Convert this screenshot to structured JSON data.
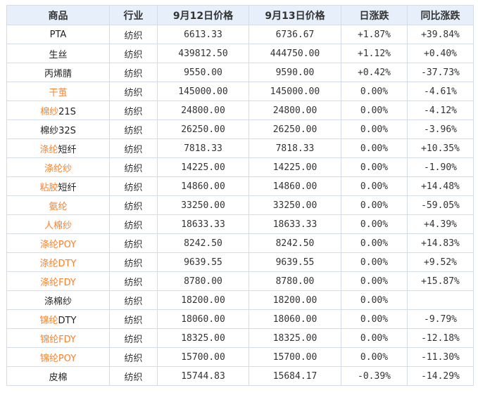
{
  "colors": {
    "header_bg": "#e6effa",
    "border": "#d3dce8",
    "orange_name": "#ff7f27",
    "up": "#ff1a1a",
    "down": "#1a9e2e",
    "text": "#333333"
  },
  "headers": [
    "商品",
    "行业",
    "9月12日价格",
    "9月13日价格",
    "日涨跌",
    "同比涨跌"
  ],
  "rows": [
    {
      "name_orange": "",
      "name_black": "PTA",
      "industry": "纺织",
      "p1": "6613.33",
      "p2": "6736.67",
      "day": "+1.87%",
      "day_dir": "up",
      "yoy": "+39.84%",
      "yoy_dir": "up"
    },
    {
      "name_orange": "",
      "name_black": "生丝",
      "industry": "纺织",
      "p1": "439812.50",
      "p2": "444750.00",
      "day": "+1.12%",
      "day_dir": "up",
      "yoy": "+0.40%",
      "yoy_dir": "up"
    },
    {
      "name_orange": "",
      "name_black": "丙烯腈",
      "industry": "纺织",
      "p1": "9550.00",
      "p2": "9590.00",
      "day": "+0.42%",
      "day_dir": "up",
      "yoy": "-37.73%",
      "yoy_dir": "down"
    },
    {
      "name_orange": "干茧",
      "name_black": "",
      "industry": "纺织",
      "p1": "145000.00",
      "p2": "145000.00",
      "day": "0.00%",
      "day_dir": "flat",
      "yoy": "-4.61%",
      "yoy_dir": "down"
    },
    {
      "name_orange": "棉纱",
      "name_black": "21S",
      "industry": "纺织",
      "p1": "24800.00",
      "p2": "24800.00",
      "day": "0.00%",
      "day_dir": "flat",
      "yoy": "-4.12%",
      "yoy_dir": "down"
    },
    {
      "name_orange": "",
      "name_black": "棉纱32S",
      "industry": "纺织",
      "p1": "26250.00",
      "p2": "26250.00",
      "day": "0.00%",
      "day_dir": "flat",
      "yoy": "-3.96%",
      "yoy_dir": "down"
    },
    {
      "name_orange": "涤纶",
      "name_black": "短纤",
      "industry": "纺织",
      "p1": "7818.33",
      "p2": "7818.33",
      "day": "0.00%",
      "day_dir": "flat",
      "yoy": "+10.35%",
      "yoy_dir": "up"
    },
    {
      "name_orange": "涤纶纱",
      "name_black": "",
      "industry": "纺织",
      "p1": "14225.00",
      "p2": "14225.00",
      "day": "0.00%",
      "day_dir": "flat",
      "yoy": "-1.90%",
      "yoy_dir": "down"
    },
    {
      "name_orange": "粘胶",
      "name_black": "短纤",
      "industry": "纺织",
      "p1": "14860.00",
      "p2": "14860.00",
      "day": "0.00%",
      "day_dir": "flat",
      "yoy": "+14.48%",
      "yoy_dir": "up"
    },
    {
      "name_orange": "氨纶",
      "name_black": "",
      "industry": "纺织",
      "p1": "33250.00",
      "p2": "33250.00",
      "day": "0.00%",
      "day_dir": "flat",
      "yoy": "-59.05%",
      "yoy_dir": "down"
    },
    {
      "name_orange": "人棉纱",
      "name_black": "",
      "industry": "纺织",
      "p1": "18633.33",
      "p2": "18633.33",
      "day": "0.00%",
      "day_dir": "flat",
      "yoy": "+4.39%",
      "yoy_dir": "up"
    },
    {
      "name_orange": "涤纶POY",
      "name_black": "",
      "industry": "纺织",
      "p1": "8242.50",
      "p2": "8242.50",
      "day": "0.00%",
      "day_dir": "flat",
      "yoy": "+14.83%",
      "yoy_dir": "up"
    },
    {
      "name_orange": "涤纶DTY",
      "name_black": "",
      "industry": "纺织",
      "p1": "9639.55",
      "p2": "9639.55",
      "day": "0.00%",
      "day_dir": "flat",
      "yoy": "+9.52%",
      "yoy_dir": "up"
    },
    {
      "name_orange": "涤纶FDY",
      "name_black": "",
      "industry": "纺织",
      "p1": "8780.00",
      "p2": "8780.00",
      "day": "0.00%",
      "day_dir": "flat",
      "yoy": "+15.87%",
      "yoy_dir": "up"
    },
    {
      "name_orange": "",
      "name_black": "涤棉纱",
      "industry": "纺织",
      "p1": "18200.00",
      "p2": "18200.00",
      "day": "0.00%",
      "day_dir": "flat",
      "yoy": "",
      "yoy_dir": "flat"
    },
    {
      "name_orange": "锦纶",
      "name_black": "DTY",
      "industry": "纺织",
      "p1": "18060.00",
      "p2": "18060.00",
      "day": "0.00%",
      "day_dir": "flat",
      "yoy": "-9.79%",
      "yoy_dir": "down"
    },
    {
      "name_orange": "锦纶FDY",
      "name_black": "",
      "industry": "纺织",
      "p1": "18325.00",
      "p2": "18325.00",
      "day": "0.00%",
      "day_dir": "flat",
      "yoy": "-12.18%",
      "yoy_dir": "down"
    },
    {
      "name_orange": "锦纶POY",
      "name_black": "",
      "industry": "纺织",
      "p1": "15700.00",
      "p2": "15700.00",
      "day": "0.00%",
      "day_dir": "flat",
      "yoy": "-11.30%",
      "yoy_dir": "down"
    },
    {
      "name_orange": "",
      "name_black": "皮棉",
      "industry": "纺织",
      "p1": "15744.83",
      "p2": "15684.17",
      "day": "-0.39%",
      "day_dir": "down",
      "yoy": "-14.29%",
      "yoy_dir": "down"
    }
  ]
}
